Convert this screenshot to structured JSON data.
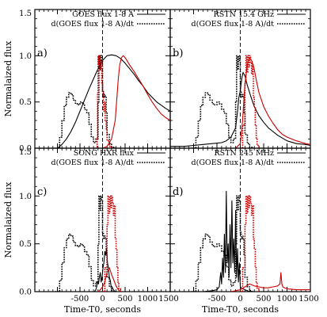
{
  "chart_data": [
    {
      "type": "line",
      "panel_label": "a)",
      "xlim": [
        -1500,
        1500
      ],
      "ylim": [
        0,
        1.5
      ],
      "x_ticks": [],
      "y_ticks": [
        "0.0",
        "0.5",
        "1.0",
        "1.5"
      ],
      "ylabel": "Normalaized flux",
      "xlabel": "",
      "vline_x": 0,
      "legend": [
        "GOES flux 1-8 A",
        "d(GOES flux 1-8 A)/dt"
      ],
      "series": [
        {
          "name": "GOES flux 1-8 A",
          "color": "#000000",
          "style": "solid",
          "x": [
            -1000,
            -900,
            -800,
            -700,
            -600,
            -500,
            -400,
            -300,
            -200,
            -100,
            0,
            100,
            200,
            300,
            400,
            500,
            600,
            700,
            800,
            900,
            1000,
            1200,
            1400,
            1500
          ],
          "y": [
            0.0,
            0.04,
            0.1,
            0.18,
            0.28,
            0.4,
            0.52,
            0.64,
            0.75,
            0.86,
            0.95,
            1.0,
            1.01,
            1.0,
            0.97,
            0.92,
            0.86,
            0.8,
            0.73,
            0.67,
            0.6,
            0.5,
            0.43,
            0.4
          ]
        },
        {
          "name": "d(GOES flux 1-8 A)/dt",
          "color": "#000000",
          "style": "dotted",
          "x": [
            -1050,
            -950,
            -900,
            -850,
            -800,
            -750,
            -700,
            -650,
            -600,
            -550,
            -500,
            -450,
            -400,
            -350,
            -300,
            -250,
            -200,
            -150,
            -100,
            -80,
            -60,
            -40,
            -20,
            0,
            20,
            40,
            60,
            80,
            100,
            150,
            200,
            250,
            300
          ],
          "y": [
            0.0,
            0.12,
            0.3,
            0.46,
            0.55,
            0.6,
            0.58,
            0.52,
            0.48,
            0.47,
            0.5,
            0.48,
            0.42,
            0.38,
            0.26,
            0.12,
            0.06,
            0.1,
            0.5,
            1.0,
            0.85,
            1.0,
            0.95,
            0.62,
            0.55,
            0.58,
            0.55,
            0.38,
            0.15,
            0.05,
            0.01,
            0.0,
            0.0
          ]
        },
        {
          "name": "",
          "color": "#cc0000",
          "style": "solid",
          "x": [
            -300,
            0,
            100,
            200,
            280,
            320,
            350,
            380,
            420,
            460,
            500,
            540,
            600,
            700,
            800,
            900,
            1000,
            1100,
            1200,
            1300,
            1400,
            1500
          ],
          "y": [
            0.0,
            0.0,
            0.02,
            0.1,
            0.3,
            0.55,
            0.75,
            0.9,
            0.98,
            1.0,
            0.98,
            0.95,
            0.9,
            0.83,
            0.75,
            0.67,
            0.58,
            0.5,
            0.43,
            0.37,
            0.33,
            0.3
          ]
        },
        {
          "name": "",
          "color": "#cc0000",
          "style": "dotted",
          "x": [
            -150,
            -120,
            -110,
            -100,
            -90,
            -80,
            -60,
            -40,
            -20,
            0,
            20,
            40,
            60,
            80,
            100,
            150,
            200
          ],
          "y": [
            0.0,
            0.1,
            0.6,
            1.0,
            0.9,
            1.0,
            0.85,
            0.95,
            0.7,
            0.6,
            0.4,
            0.5,
            0.3,
            0.2,
            0.08,
            0.02,
            0.0
          ]
        }
      ]
    },
    {
      "type": "line",
      "panel_label": "b)",
      "xlim": [
        -1500,
        1500
      ],
      "ylim": [
        0,
        1.5
      ],
      "x_ticks": [],
      "y_ticks": [],
      "ylabel": "",
      "xlabel": "",
      "vline_x": 0,
      "legend": [
        "RSTN 15.4 GHz",
        "d(GOES flux 1-8 A)/dt"
      ],
      "series": [
        {
          "name": "RSTN 15.4 GHz",
          "color": "#000000",
          "style": "solid",
          "x": [
            -1500,
            -1200,
            -1000,
            -800,
            -600,
            -400,
            -300,
            -200,
            -100,
            -60,
            -30,
            0,
            30,
            60,
            100,
            150,
            200,
            250,
            300,
            400,
            500,
            600,
            700,
            800,
            900,
            1000,
            1200,
            1400,
            1500
          ],
          "y": [
            0.02,
            0.02,
            0.03,
            0.04,
            0.05,
            0.06,
            0.08,
            0.12,
            0.22,
            0.4,
            0.55,
            0.62,
            0.75,
            0.82,
            0.78,
            0.68,
            0.6,
            0.52,
            0.45,
            0.35,
            0.28,
            0.22,
            0.18,
            0.14,
            0.11,
            0.08,
            0.05,
            0.04,
            0.03
          ]
        },
        {
          "name": "d(GOES flux 1-8 A)/dt",
          "color": "#000000",
          "style": "dotted",
          "x": [
            -1050,
            -950,
            -900,
            -850,
            -800,
            -750,
            -700,
            -650,
            -600,
            -550,
            -500,
            -450,
            -400,
            -350,
            -300,
            -250,
            -200,
            -150,
            -100,
            -80,
            -60,
            -40,
            -20,
            0,
            20,
            40,
            60,
            80,
            100,
            150,
            200,
            250,
            300
          ],
          "y": [
            0.0,
            0.12,
            0.3,
            0.46,
            0.55,
            0.6,
            0.58,
            0.52,
            0.48,
            0.47,
            0.5,
            0.48,
            0.42,
            0.38,
            0.26,
            0.12,
            0.06,
            0.1,
            0.5,
            1.0,
            0.85,
            1.0,
            0.95,
            0.62,
            0.55,
            0.58,
            0.55,
            0.38,
            0.15,
            0.05,
            0.01,
            0.0,
            0.0
          ]
        },
        {
          "name": "",
          "color": "#cc0000",
          "style": "solid",
          "x": [
            -300,
            -100,
            0,
            50,
            100,
            150,
            200,
            250,
            300,
            350,
            400,
            500,
            600,
            700,
            800,
            900,
            1000,
            1200,
            1400,
            1500
          ],
          "y": [
            0.0,
            0.0,
            0.05,
            0.3,
            0.7,
            0.9,
            0.98,
            0.94,
            0.85,
            0.72,
            0.6,
            0.45,
            0.35,
            0.27,
            0.2,
            0.15,
            0.12,
            0.08,
            0.05,
            0.04
          ]
        },
        {
          "name": "",
          "color": "#cc0000",
          "style": "dotted",
          "x": [
            0,
            50,
            100,
            120,
            140,
            160,
            180,
            200,
            220,
            240,
            260,
            280,
            300,
            320,
            340,
            360,
            400
          ],
          "y": [
            0.0,
            0.25,
            0.7,
            1.0,
            0.82,
            1.0,
            0.88,
            1.0,
            0.92,
            0.8,
            0.9,
            0.55,
            0.45,
            0.25,
            0.1,
            0.03,
            0.0
          ]
        }
      ]
    },
    {
      "type": "line",
      "panel_label": "c)",
      "xlim": [
        -1500,
        1500
      ],
      "ylim": [
        0,
        1.5
      ],
      "x_ticks": [
        "-500",
        "0",
        "500",
        "1000",
        "1500"
      ],
      "y_ticks": [
        "0.0",
        "0.5",
        "1.0",
        "1.5"
      ],
      "ylabel": "Normalaized flux",
      "xlabel": "Time-T0, seconds",
      "vline_x": 0,
      "legend": [
        "SONG HXR flux",
        "d(GOES flux 1-8 A)/dt"
      ],
      "series": [
        {
          "name": "SONG HXR flux",
          "color": "#000000",
          "style": "solid",
          "x": [
            -180,
            -150,
            -130,
            -110,
            -90,
            -70,
            -50,
            -30,
            -10,
            10,
            30,
            50,
            70,
            90,
            110,
            130,
            150,
            170,
            190,
            210,
            240,
            280
          ],
          "y": [
            0.0,
            0.02,
            0.05,
            0.1,
            0.08,
            0.15,
            0.2,
            0.1,
            0.15,
            0.25,
            0.3,
            0.42,
            0.38,
            0.45,
            0.3,
            0.25,
            0.15,
            0.12,
            0.06,
            0.05,
            0.02,
            0.0
          ]
        },
        {
          "name": "d(GOES flux 1-8 A)/dt",
          "color": "#000000",
          "style": "dotted",
          "x": [
            -1050,
            -950,
            -900,
            -850,
            -800,
            -750,
            -700,
            -650,
            -600,
            -550,
            -500,
            -450,
            -400,
            -350,
            -300,
            -250,
            -200,
            -150,
            -100,
            -80,
            -60,
            -40,
            -20,
            0,
            20,
            40,
            60,
            80,
            100,
            150,
            200,
            250,
            300
          ],
          "y": [
            0.0,
            0.12,
            0.3,
            0.46,
            0.55,
            0.6,
            0.58,
            0.52,
            0.48,
            0.47,
            0.5,
            0.48,
            0.42,
            0.38,
            0.26,
            0.12,
            0.06,
            0.1,
            0.5,
            1.0,
            0.85,
            1.0,
            0.95,
            0.62,
            0.55,
            0.58,
            0.55,
            0.38,
            0.15,
            0.05,
            0.01,
            0.0,
            0.0
          ]
        },
        {
          "name": "",
          "color": "#cc0000",
          "style": "solid",
          "x": [
            -100,
            -50,
            0,
            50,
            100,
            150,
            200,
            250,
            300,
            350,
            400
          ],
          "y": [
            0.0,
            0.02,
            0.05,
            0.1,
            0.2,
            0.25,
            0.18,
            0.12,
            0.06,
            0.02,
            0.0
          ]
        },
        {
          "name": "",
          "color": "#cc0000",
          "style": "dotted",
          "x": [
            0,
            50,
            100,
            120,
            140,
            160,
            180,
            200,
            220,
            240,
            260,
            280,
            300,
            320,
            340,
            360,
            400
          ],
          "y": [
            0.0,
            0.25,
            0.7,
            1.0,
            0.82,
            1.0,
            0.88,
            1.0,
            0.92,
            0.8,
            0.9,
            0.55,
            0.45,
            0.25,
            0.1,
            0.03,
            0.0
          ]
        }
      ]
    },
    {
      "type": "line",
      "panel_label": "d)",
      "xlim": [
        -1500,
        1500
      ],
      "ylim": [
        0,
        1.5
      ],
      "x_ticks": [
        "-500",
        "0",
        "500",
        "1000",
        "1500"
      ],
      "y_ticks": [],
      "ylabel": "",
      "xlabel": "Time-T0, seconds",
      "vline_x": 0,
      "legend": [
        "RSTN 245 MHz",
        "d(GOES flux 1-8 A)/dt"
      ],
      "series": [
        {
          "name": "RSTN 245 MHz",
          "color": "#000000",
          "style": "solid",
          "x": [
            -1000,
            -800,
            -600,
            -500,
            -450,
            -420,
            -400,
            -380,
            -360,
            -340,
            -320,
            -300,
            -280,
            -260,
            -240,
            -220,
            -200,
            -180,
            -160,
            -140,
            -120,
            -100,
            -80,
            -60,
            -40,
            -20,
            0,
            50,
            100,
            150,
            200
          ],
          "y": [
            0.0,
            0.0,
            0.01,
            0.02,
            0.05,
            0.2,
            0.08,
            0.35,
            0.15,
            0.6,
            0.2,
            1.05,
            0.3,
            0.5,
            0.15,
            0.7,
            0.25,
            0.95,
            0.3,
            0.55,
            0.2,
            0.85,
            0.15,
            0.45,
            0.1,
            0.3,
            0.05,
            0.03,
            0.02,
            0.01,
            0.0
          ]
        },
        {
          "name": "d(GOES flux 1-8 A)/dt",
          "color": "#000000",
          "style": "dotted",
          "x": [
            -1050,
            -950,
            -900,
            -850,
            -800,
            -750,
            -700,
            -650,
            -600,
            -550,
            -500,
            -450,
            -400,
            -350,
            -300,
            -250,
            -200,
            -150,
            -100,
            -80,
            -60,
            -40,
            -20,
            0,
            20,
            40,
            60,
            80,
            100,
            150,
            200,
            250,
            300
          ],
          "y": [
            0.0,
            0.12,
            0.3,
            0.46,
            0.55,
            0.6,
            0.58,
            0.52,
            0.48,
            0.47,
            0.5,
            0.48,
            0.42,
            0.38,
            0.26,
            0.12,
            0.06,
            0.1,
            0.5,
            1.0,
            0.85,
            1.0,
            0.95,
            0.62,
            0.55,
            0.58,
            0.55,
            0.38,
            0.15,
            0.05,
            0.01,
            0.0,
            0.0
          ]
        },
        {
          "name": "",
          "color": "#cc0000",
          "style": "solid",
          "x": [
            -200,
            0,
            100,
            200,
            300,
            400,
            500,
            600,
            700,
            800,
            850,
            870,
            890,
            910,
            950,
            1000,
            1200,
            1500
          ],
          "y": [
            0.0,
            0.02,
            0.05,
            0.08,
            0.06,
            0.05,
            0.04,
            0.04,
            0.05,
            0.06,
            0.08,
            0.2,
            0.08,
            0.05,
            0.04,
            0.03,
            0.02,
            0.02
          ]
        },
        {
          "name": "",
          "color": "#cc0000",
          "style": "dotted",
          "x": [
            0,
            50,
            100,
            120,
            140,
            160,
            180,
            200,
            220,
            240,
            260,
            280,
            300,
            320,
            340,
            360,
            400
          ],
          "y": [
            0.0,
            0.25,
            0.7,
            1.0,
            0.82,
            1.0,
            0.88,
            1.0,
            0.92,
            0.8,
            0.9,
            0.55,
            0.45,
            0.25,
            0.1,
            0.03,
            0.0
          ]
        }
      ]
    }
  ]
}
